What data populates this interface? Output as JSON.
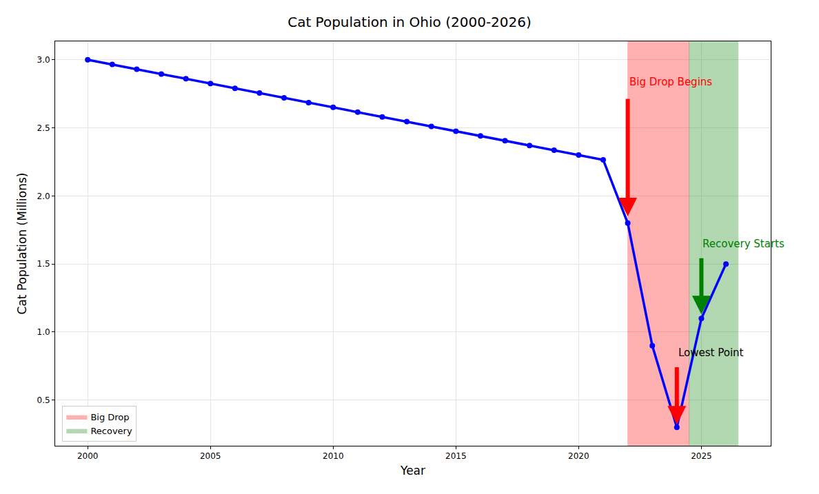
{
  "chart_data": {
    "type": "line",
    "title": "Cat Population in Ohio (2000-2026)",
    "x_label": "Year",
    "y_label": "Cat Population (Millions)",
    "x": [
      2000,
      2001,
      2002,
      2003,
      2004,
      2005,
      2006,
      2007,
      2008,
      2009,
      2010,
      2011,
      2012,
      2013,
      2014,
      2015,
      2016,
      2017,
      2018,
      2019,
      2020,
      2021,
      2022,
      2023,
      2024,
      2025,
      2026
    ],
    "values": [
      3.0,
      2.965,
      2.93,
      2.895,
      2.86,
      2.825,
      2.79,
      2.755,
      2.72,
      2.685,
      2.65,
      2.615,
      2.58,
      2.545,
      2.51,
      2.475,
      2.44,
      2.405,
      2.37,
      2.335,
      2.3,
      2.265,
      1.8,
      0.9,
      0.3,
      1.1,
      1.5
    ],
    "color": "blue",
    "marker": "circle",
    "line_style": "solid",
    "xlim": [
      1998.675,
      2027.825
    ],
    "ylim": [
      0.165,
      3.135
    ],
    "xticks": [
      2000,
      2005,
      2010,
      2015,
      2020,
      2025
    ],
    "yticks": [
      {
        "value": 0.5,
        "label": "0.5"
      },
      {
        "value": 1.0,
        "label": "1.0"
      },
      {
        "value": 1.5,
        "label": "1.5"
      },
      {
        "value": 2.0,
        "label": "2.0"
      },
      {
        "value": 2.5,
        "label": "2.5"
      },
      {
        "value": 3.0,
        "label": "3.0"
      }
    ],
    "grid": true,
    "legend": "lower left",
    "shaded_regions": [
      {
        "name": "Big Drop",
        "from": 2022,
        "to": 2024.5,
        "color": "red"
      },
      {
        "name": "Recovery",
        "from": 2024.5,
        "to": 2026.5,
        "color": "green"
      }
    ],
    "annotations": [
      {
        "text": "Big Drop Begins",
        "x": 2022,
        "y": 2.78,
        "color": "red",
        "arrow_color": "red",
        "arrow_from": [
          2022,
          2.72
        ],
        "arrow_to": [
          2022,
          1.85
        ]
      },
      {
        "text": "Lowest Point",
        "x": 2024,
        "y": 0.79,
        "color": "black",
        "arrow_color": "red",
        "arrow_from": [
          2024,
          0.75
        ],
        "arrow_to": [
          2024,
          0.32
        ]
      },
      {
        "text": "Recovery Starts",
        "x": 2025,
        "y": 1.59,
        "color": "green",
        "arrow_color": "green",
        "arrow_from": [
          2025,
          1.55
        ],
        "arrow_to": [
          2025,
          1.13
        ]
      }
    ]
  }
}
